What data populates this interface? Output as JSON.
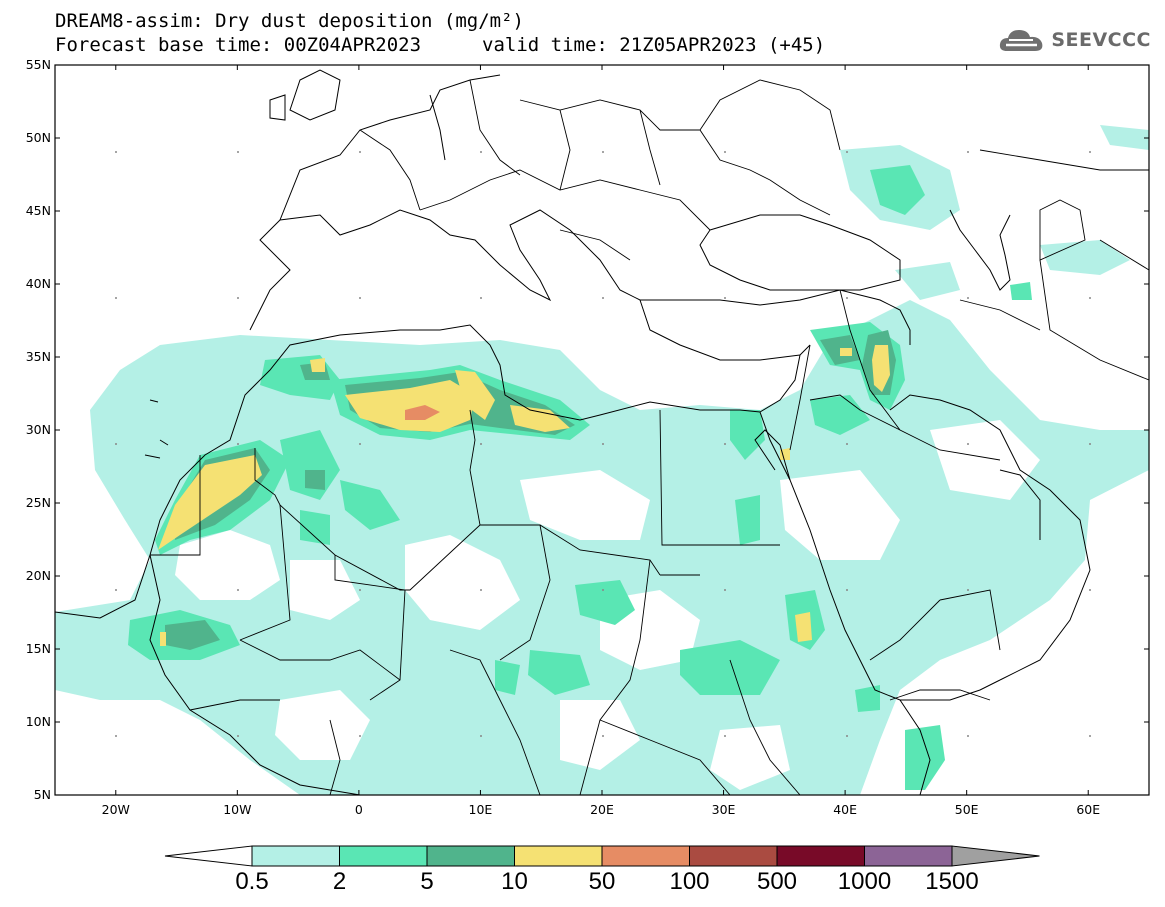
{
  "title": {
    "line1": "DREAM8-assim: Dry dust deposition (mg/m²)",
    "line2_base": "Forecast base time: 00Z04APR2023",
    "line2_valid": "valid time: 21Z05APR2023 (+45)"
  },
  "logo": {
    "text": "SEEVCCC",
    "icon": "cloud-logo-icon"
  },
  "axes": {
    "lat_labels": [
      "55N",
      "50N",
      "45N",
      "40N",
      "35N",
      "30N",
      "25N",
      "20N",
      "15N",
      "10N",
      "5N"
    ],
    "lon_labels": [
      "20W",
      "10W",
      "0",
      "10E",
      "20E",
      "30E",
      "40E",
      "50E",
      "60E"
    ],
    "lon_range": [
      -25,
      65
    ],
    "lat_range": [
      5,
      55
    ]
  },
  "colorbar": {
    "labels": [
      "0.5",
      "2",
      "5",
      "10",
      "50",
      "100",
      "500",
      "1000",
      "1500"
    ],
    "colors": [
      "#b4f0e6",
      "#5ae6b4",
      "#50b48c",
      "#f5e173",
      "#e68c64",
      "#aa4b41",
      "#780a28",
      "#8c6496",
      "#a0a0a0"
    ]
  }
}
